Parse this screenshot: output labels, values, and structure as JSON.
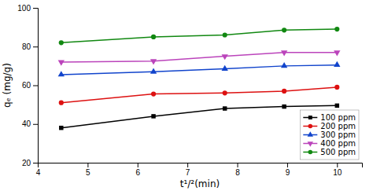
{
  "chart_data": {
    "type": "line",
    "xlabel": "t¹/²(min)",
    "ylabel": "qₑ (mg/g)",
    "x": [
      4.47,
      6.32,
      7.75,
      8.94,
      10.0
    ],
    "xlim": [
      4,
      10.5
    ],
    "ylim": [
      20,
      100
    ],
    "xticks": [
      4,
      5,
      6,
      7,
      8,
      9,
      10
    ],
    "yticks": [
      20,
      40,
      60,
      80,
      100
    ],
    "grid": false,
    "legend": "lower right",
    "series": [
      {
        "name": "100 ppm",
        "color": "#000000",
        "marker": "square",
        "values": [
          38.0,
          44.0,
          48.0,
          49.0,
          49.5
        ]
      },
      {
        "name": "200 ppm",
        "color": "#dd1111",
        "marker": "circle",
        "values": [
          51.0,
          55.5,
          56.0,
          57.0,
          59.0
        ]
      },
      {
        "name": "300 ppm",
        "color": "#1144cc",
        "marker": "triangle-up",
        "values": [
          65.5,
          67.0,
          68.5,
          70.0,
          70.5
        ]
      },
      {
        "name": "400 ppm",
        "color": "#bb44bb",
        "marker": "triangle-down",
        "values": [
          72.0,
          72.5,
          75.0,
          77.0,
          77.0
        ]
      },
      {
        "name": "500 ppm",
        "color": "#118811",
        "marker": "circle",
        "values": [
          82.0,
          85.0,
          86.0,
          88.5,
          89.0
        ]
      }
    ]
  }
}
